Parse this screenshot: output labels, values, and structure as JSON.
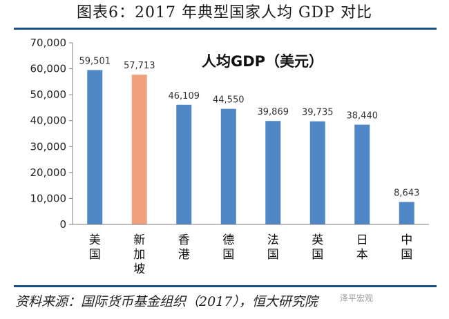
{
  "figure": {
    "title": "图表6：2017 年典型国家人均 GDP 对比",
    "source": "资料来源：国际货币基金组织（2017），恒大研究院",
    "watermark": "泽平宏观"
  },
  "colors": {
    "bar_default": "#4f86c6",
    "bar_highlight": "#f0a17b",
    "rule": "#1b4f8a",
    "axis": "#7f7f7f"
  },
  "chart_data": {
    "type": "bar",
    "title": "人均GDP（美元）",
    "xlabel": "",
    "ylabel": "",
    "categories": [
      "美国",
      "新加坡",
      "香港",
      "德国",
      "法国",
      "英国",
      "日本",
      "中国"
    ],
    "values": [
      59501,
      57713,
      46109,
      44550,
      39869,
      39735,
      38440,
      8643
    ],
    "value_labels": [
      "59,501",
      "57,713",
      "46,109",
      "44,550",
      "39,869",
      "39,735",
      "38,440",
      "8,643"
    ],
    "highlight_index": 1,
    "ylim": [
      0,
      70000
    ],
    "yticks": [
      0,
      10000,
      20000,
      30000,
      40000,
      50000,
      60000,
      70000
    ],
    "ytick_labels": [
      "0",
      "10,000",
      "20,000",
      "30,000",
      "40,000",
      "50,000",
      "60,000",
      "70,000"
    ],
    "grid": false,
    "legend": "none"
  }
}
